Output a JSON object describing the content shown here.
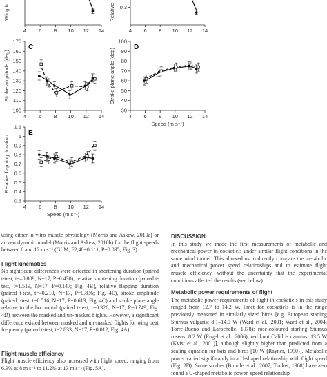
{
  "figure": {
    "panels": [
      {
        "letter": "",
        "ylabel": "Wing b",
        "xlabel": "",
        "x_ticks": [
          4,
          6,
          8,
          10,
          12,
          14
        ],
        "ylim": [
          0,
          1
        ],
        "y_ticks": [],
        "series": [
          {
            "style": "solid",
            "x": [
              12,
              13
            ],
            "y": [
              0.85,
              0.35
            ]
          }
        ]
      },
      {
        "letter": "",
        "ylabel": "Relative",
        "xlabel": "",
        "x_ticks": [
          4,
          6,
          8,
          10,
          12,
          14
        ],
        "ylim": [
          0.2,
          0.42
        ],
        "y_ticks": [
          0.3
        ],
        "series": [
          {
            "style": "solid",
            "x": [
              12,
              13
            ],
            "y": [
              0.37,
              0.27
            ]
          }
        ]
      },
      {
        "letter": "C",
        "ylabel": "Stroke amplitude (deg)",
        "xlabel": "",
        "x_ticks": [
          4,
          6,
          8,
          10,
          12,
          14
        ],
        "ylim": [
          100,
          170
        ],
        "y_ticks": [
          100,
          110,
          120,
          130,
          140,
          150,
          160,
          170
        ],
        "series": [
          {
            "style": "solid",
            "x": [
              6,
              7,
              8,
              10,
              12,
              13
            ],
            "y": [
              135,
              130,
              125,
              116,
              125,
              133
            ]
          },
          {
            "style": "dashed",
            "x": [
              6,
              7,
              8,
              10,
              12,
              13
            ],
            "y": [
              147,
              128,
              118,
              125,
              124,
              132
            ]
          }
        ]
      },
      {
        "letter": "D",
        "ylabel": "Stroke plane angle (deg)",
        "xlabel": "Speed (m s⁻¹)",
        "x_ticks": [
          4,
          6,
          8,
          10,
          12,
          14
        ],
        "ylim": [
          30,
          100
        ],
        "y_ticks": [
          30,
          40,
          50,
          60,
          70,
          80,
          90,
          100
        ],
        "series": [
          {
            "style": "solid",
            "x": [
              6,
              8,
              10,
              12,
              13
            ],
            "y": [
              60,
              69,
              73,
              75,
              72
            ]
          },
          {
            "style": "dashed",
            "x": [
              6,
              8,
              10,
              12,
              13
            ],
            "y": [
              62,
              70,
              74,
              76,
              74
            ]
          }
        ]
      },
      {
        "letter": "E",
        "ylabel": "Relative flapping duration",
        "xlabel": "Speed (m s⁻¹)",
        "x_ticks": [
          4,
          6,
          8,
          10,
          12,
          14
        ],
        "ylim": [
          0.3,
          1.1
        ],
        "y_ticks": [
          0.3,
          0.4,
          0.5,
          0.6,
          0.7,
          0.8,
          0.9,
          1.0,
          1.1
        ],
        "series": [
          {
            "style": "solid",
            "x": [
              6,
              7,
              8,
              10,
              12,
              13
            ],
            "y": [
              0.8,
              0.78,
              0.76,
              0.7,
              0.77,
              0.76
            ]
          },
          {
            "style": "dashed",
            "x": [
              6,
              7,
              8,
              10,
              12,
              13
            ],
            "y": [
              0.72,
              0.75,
              0.78,
              0.72,
              0.79,
              0.9
            ]
          }
        ]
      }
    ]
  },
  "left_column": {
    "intro": "using either in vitro muscle physiology (Morris and Askew, 2010a) or an aerodynamic model (Morris and Askew, 2010b) for the flight speeds between 6 and 12 m s⁻¹ (GLM, F2,48=0.111, P=0.895; Fig. 3).",
    "heading_kinematics": "Flight kinematics",
    "kinematics": "No significant differences were detected in shortening duration (paired t-test, t=–0.809, N=17, P=0.430), relative shortening duration (paired t-test, t=1.519, N=17, P=0.147; Fig. 4B), relative flapping duration (paired t-test, t=–0.210, N=17, P=0.836; Fig. 4E), stroke amplitude (paired t-test, t=0.516, N=17, P=0.613; Fig. 4C) and stroke plane angle relative to the horizontal (paired t-test, t=0.326, N=17, P=0.749; Fig. 4D) between the masked and un-masked flights. However, a significant difference existed between masked and un-masked flights for wing beat frequency (paired t-test, t=2.833, N=17, P=0.012; Fig. 4A).",
    "heading_efficiency": "Flight muscle efficiency",
    "efficiency": "Flight muscle efficiency also increased with flight speed, ranging from 6.9% at 8 m s⁻¹ to 11.2% at 13 m s⁻¹ (Fig. 5A)."
  },
  "right_column": {
    "heading_discussion": "DISCUSSION",
    "discussion": "In this study we made the first measurements of metabolic and mechanical power in cockatiels under similar flight conditions in the same wind tunnel. This allowed us to directly compare the metabolic and mechanical power speed relationships and to estimate flight muscle efficiency, without the uncertainty that the experimental conditions affected the results (see below).",
    "heading_metabolic": "Metabolic power requirements of flight",
    "metabolic": "The metabolic power requirements of flight in cockatiels in this study ranged from 12.7 to 14.2 W. Pmet for cockatiels is in the range previously measured in similarly sized birds [e.g. European starling Sturnus vulgaris: 8.1–14.9 W (Ward et al., 2001; Ward et al., 2004; Torre-Bueno and Larochelle, 1978); rose-coloured starling Sturnus roseus: 8.2 W (Engel et al., 2006); red knot Calidris canutus: 13.5 W (Kvist et al., 2001)], although slightly higher than predicted from a scaling equation for bats and birds [10 W (Rayner, 1990)]. Metabolic power varied significantly in a U-shaped relationship with flight speed (Fig. 2D). Some studies (Bundle et al., 2007; Tucker, 1968) have also found a U-shaped metabolic power–speed relationship"
  }
}
